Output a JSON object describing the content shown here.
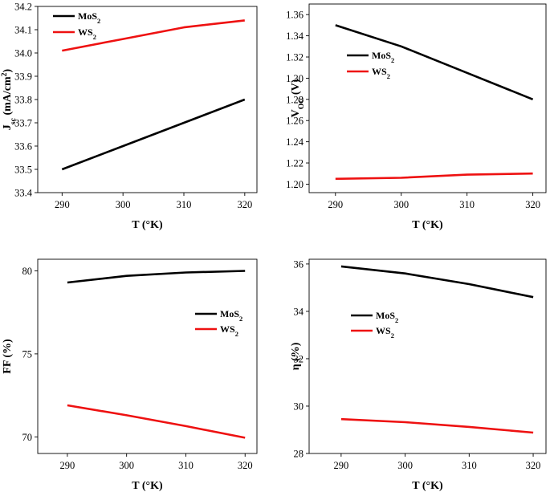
{
  "figure": {
    "panels": [
      {
        "id": "jsc",
        "ylabel_parts": [
          "J",
          "sc",
          " (mA/cm",
          "2",
          ")"
        ]
      },
      {
        "id": "voc",
        "ylabel_parts": [
          "V",
          "OC",
          " (V)"
        ]
      },
      {
        "id": "ff",
        "ylabel_parts": [
          "FF (%)"
        ]
      },
      {
        "id": "eta",
        "ylabel_parts": [
          "η (%)"
        ]
      }
    ]
  },
  "series_display": {
    "MoS2": {
      "base": "MoS",
      "sub": "2"
    },
    "WS2": {
      "base": "WS",
      "sub": "2"
    }
  },
  "colors": {
    "MoS2": "#000000",
    "WS2": "#ee1111"
  },
  "chart_data": [
    {
      "type": "line",
      "title": "",
      "xlabel": "T (°K)",
      "ylabel": "Jsc (mA/cm2)",
      "x": [
        290,
        300,
        310,
        320
      ],
      "xlim": [
        286,
        322
      ],
      "xticks": [
        290,
        300,
        310,
        320
      ],
      "ylim": [
        33.4,
        34.2
      ],
      "yticks": [
        33.4,
        33.5,
        33.6,
        33.7,
        33.8,
        33.9,
        34.0,
        34.1,
        34.2
      ],
      "ytick_labels": [
        "33.4",
        "33.5",
        "33.6",
        "33.7",
        "33.8",
        "33.9",
        "34.0",
        "34.1",
        "34.2"
      ],
      "legend_position": "top-left",
      "series": [
        {
          "name": "MoS2",
          "values": [
            33.5,
            33.6,
            33.7,
            33.8
          ]
        },
        {
          "name": "WS2",
          "values": [
            34.01,
            34.06,
            34.11,
            34.14
          ]
        }
      ]
    },
    {
      "type": "line",
      "title": "",
      "xlabel": "T (°K)",
      "ylabel": "VOC (V)",
      "x": [
        290,
        300,
        310,
        320
      ],
      "xlim": [
        286,
        322
      ],
      "xticks": [
        290,
        300,
        310,
        320
      ],
      "ylim": [
        1.192,
        1.37
      ],
      "yticks": [
        1.2,
        1.22,
        1.24,
        1.26,
        1.28,
        1.3,
        1.32,
        1.34,
        1.36
      ],
      "ytick_labels": [
        "1.20",
        "1.22",
        "1.24",
        "1.26",
        "1.28",
        "1.30",
        "1.32",
        "1.34",
        "1.36"
      ],
      "legend_position": "upper-left",
      "series": [
        {
          "name": "MoS2",
          "values": [
            1.35,
            1.33,
            1.305,
            1.28
          ]
        },
        {
          "name": "WS2",
          "values": [
            1.205,
            1.206,
            1.209,
            1.21
          ]
        }
      ]
    },
    {
      "type": "line",
      "title": "",
      "xlabel": "T (°K)",
      "ylabel": "FF (%)",
      "x": [
        290,
        300,
        310,
        320
      ],
      "xlim": [
        285,
        322
      ],
      "xticks": [
        290,
        300,
        310,
        320
      ],
      "ylim": [
        69,
        80.7
      ],
      "yticks": [
        70,
        75,
        80
      ],
      "ytick_labels": [
        "70",
        "75",
        "80"
      ],
      "legend_position": "upper-right",
      "series": [
        {
          "name": "MoS2",
          "values": [
            79.3,
            79.7,
            79.9,
            80.0
          ]
        },
        {
          "name": "WS2",
          "values": [
            71.9,
            71.3,
            70.65,
            69.95
          ]
        }
      ]
    },
    {
      "type": "line",
      "title": "",
      "xlabel": "T (°K)",
      "ylabel": "η (%)",
      "x": [
        290,
        300,
        310,
        320
      ],
      "xlim": [
        285,
        322
      ],
      "xticks": [
        290,
        300,
        310,
        320
      ],
      "ylim": [
        28,
        36.2
      ],
      "yticks": [
        28,
        30,
        32,
        34,
        36
      ],
      "ytick_labels": [
        "28",
        "30",
        "32",
        "34",
        "36"
      ],
      "legend_position": "upper-middle",
      "series": [
        {
          "name": "MoS2",
          "values": [
            35.9,
            35.6,
            35.15,
            34.6
          ]
        },
        {
          "name": "WS2",
          "values": [
            29.45,
            29.32,
            29.12,
            28.88
          ]
        }
      ]
    }
  ]
}
